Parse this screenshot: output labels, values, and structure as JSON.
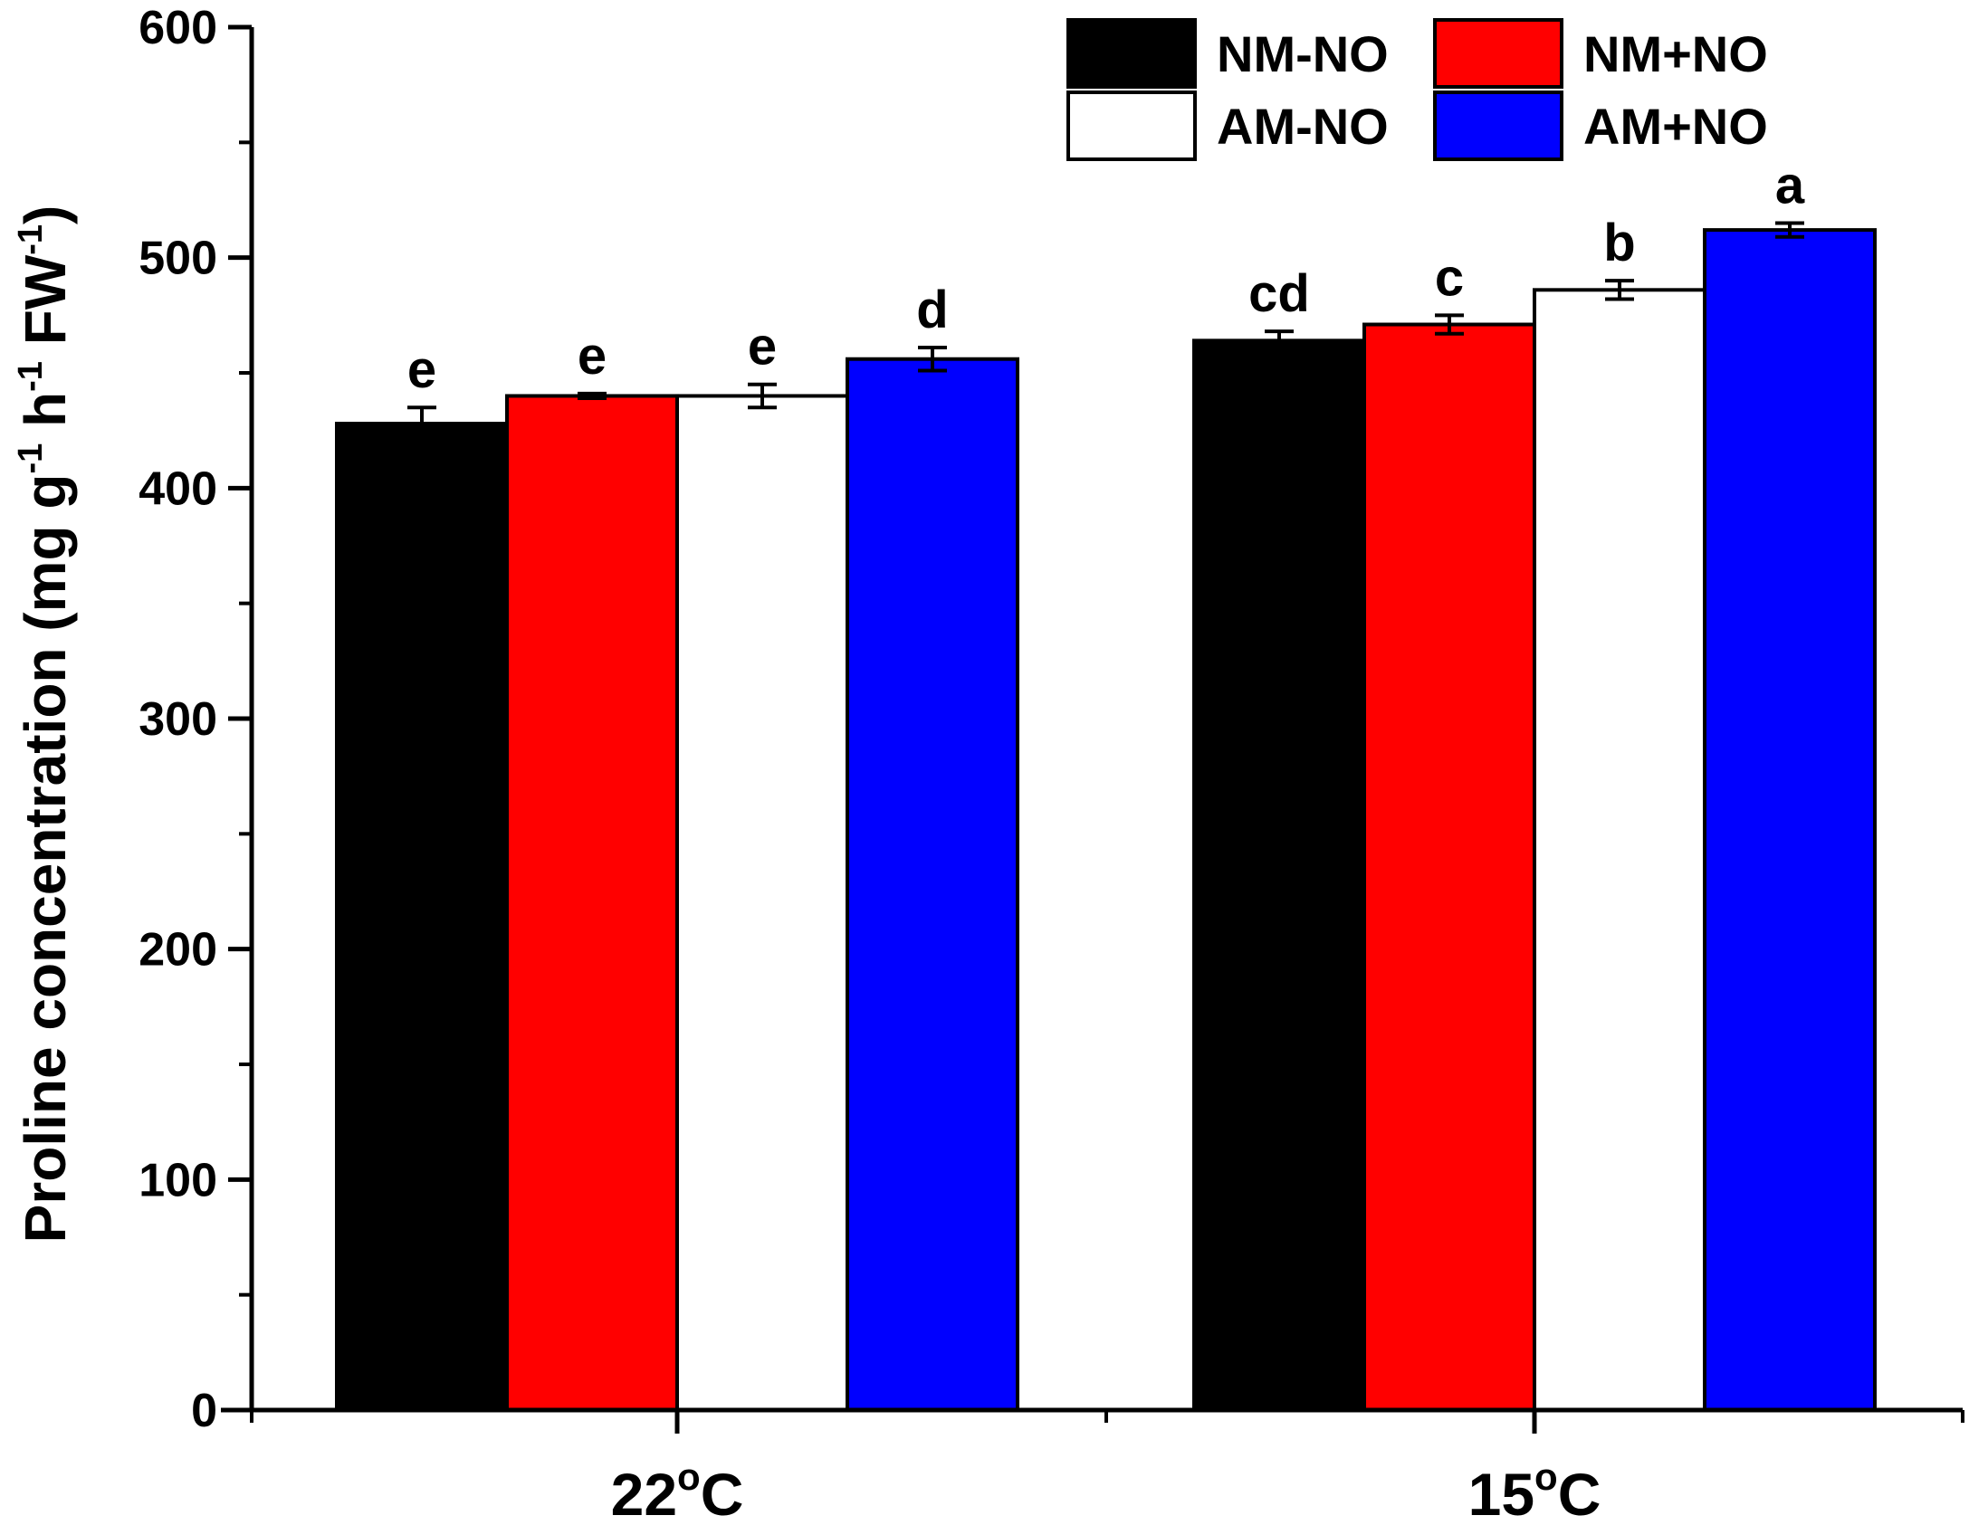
{
  "chart_data": {
    "type": "bar",
    "categories": [
      "22°C",
      "15°C"
    ],
    "category_parts": [
      {
        "base": "22",
        "sup": "o",
        "unit": "C"
      },
      {
        "base": "15",
        "sup": "o",
        "unit": "C"
      }
    ],
    "series": [
      {
        "name": "NM-NO",
        "color": "#000000",
        "values": [
          428,
          464
        ],
        "errors": [
          7,
          4
        ],
        "letters": [
          "e",
          "cd"
        ]
      },
      {
        "name": "NM+NO",
        "color": "#ff0000",
        "values": [
          440,
          471
        ],
        "errors": [
          1,
          4
        ],
        "letters": [
          "e",
          "c"
        ]
      },
      {
        "name": "AM-NO",
        "color": "#ffffff",
        "values": [
          440,
          486
        ],
        "errors": [
          5,
          4
        ],
        "letters": [
          "e",
          "b"
        ]
      },
      {
        "name": "AM+NO",
        "color": "#0000ff",
        "values": [
          456,
          512
        ],
        "errors": [
          5,
          3
        ],
        "letters": [
          "d",
          "a"
        ]
      }
    ],
    "ylim": [
      0,
      600
    ],
    "yticks": [
      0,
      100,
      200,
      300,
      400,
      500,
      600
    ],
    "ytick_labels": [
      "0",
      "100",
      "200",
      "300",
      "400",
      "500",
      "600"
    ],
    "ylabel_parts": {
      "pre": "Proline concentration (mg g",
      "sup1": "-1",
      "mid": " h",
      "sup2": "-1",
      "mid2": " FW",
      "sup3": "-1",
      "post": ")"
    },
    "legend_position": "top-right",
    "grid": false
  }
}
